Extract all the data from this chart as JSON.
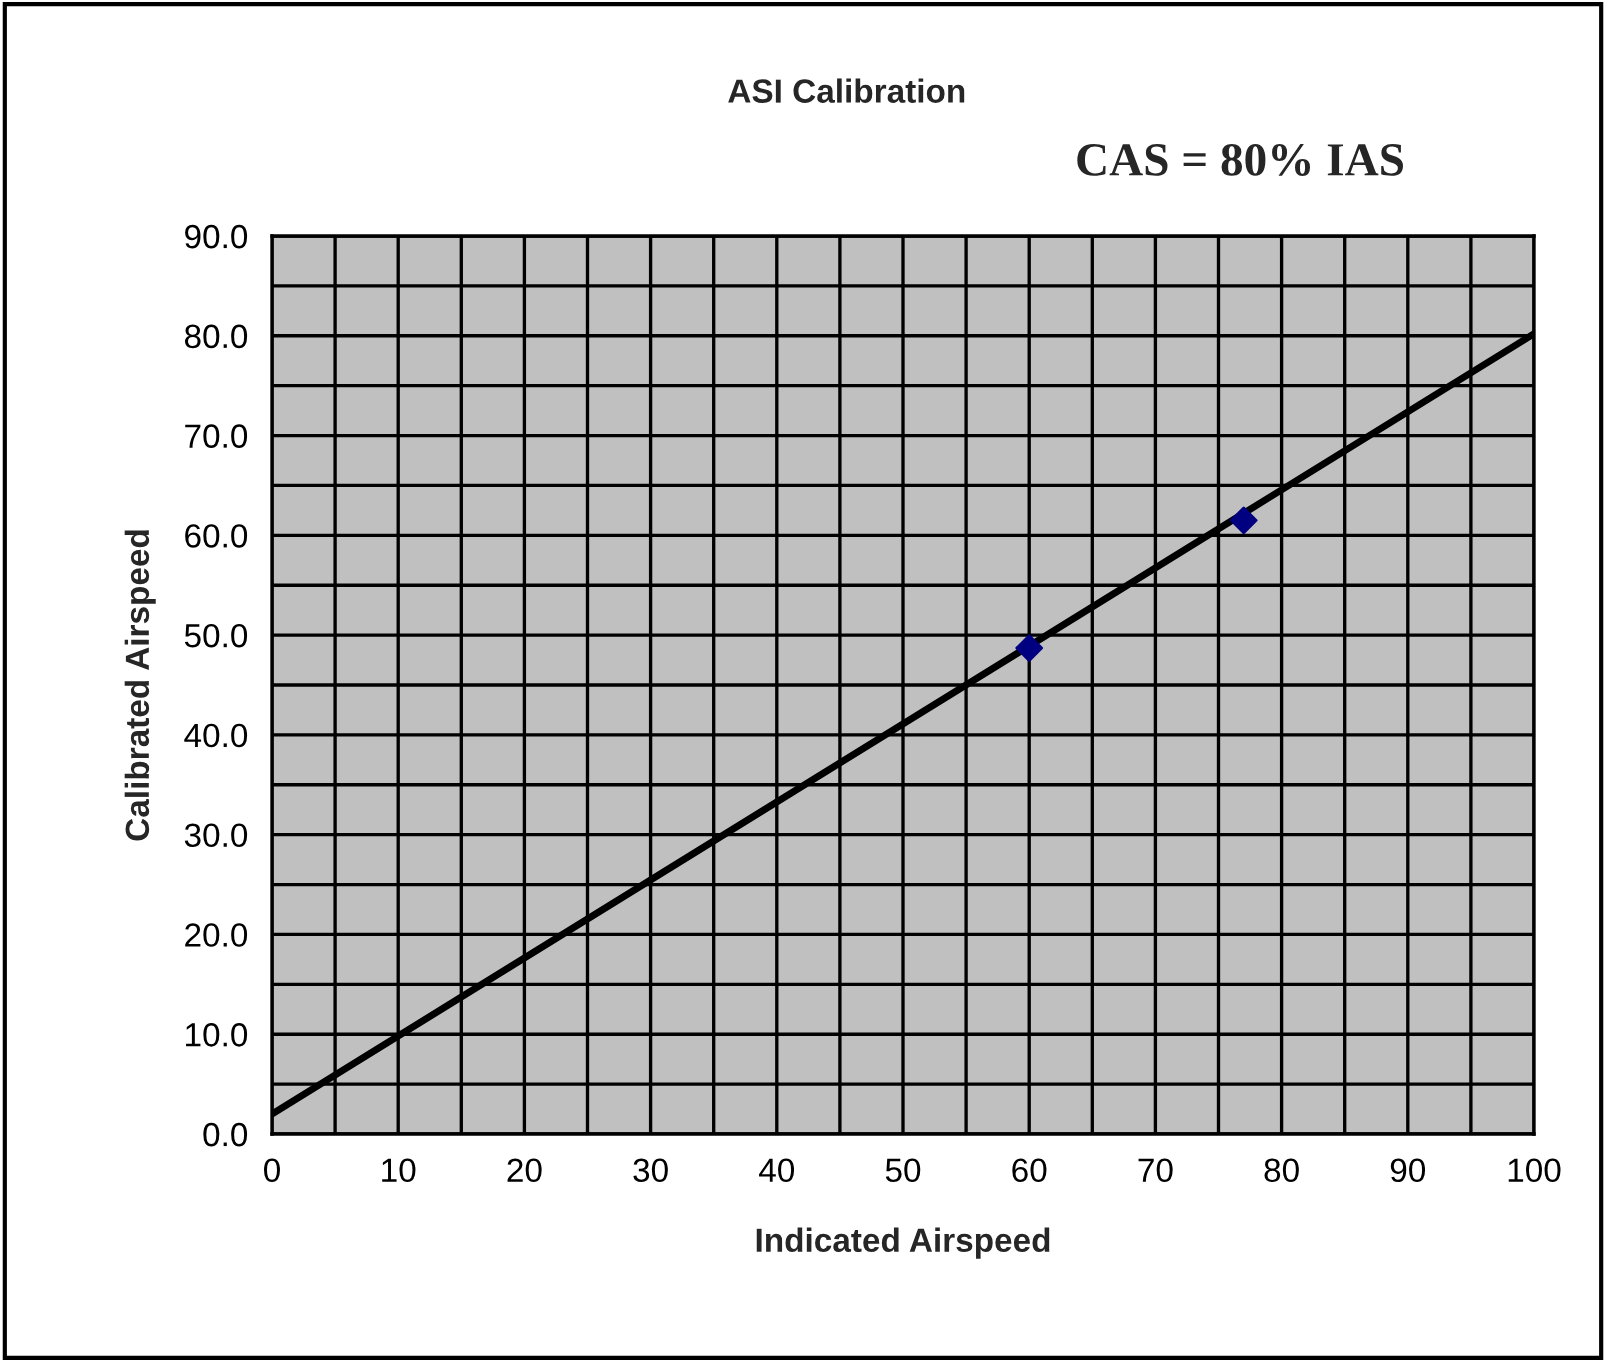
{
  "chart_data": {
    "type": "scatter",
    "title": "ASI Calibration",
    "xlabel": "Indicated Airspeed",
    "ylabel": "Calibrated Airspeed",
    "annotations": [
      "CAS = 80% IAS"
    ],
    "series": [
      {
        "color": "#000080",
        "x": [
          60,
          77
        ],
        "values": [
          48.7,
          61.5
        ],
        "marker": "diamond"
      },
      {
        "type": "line",
        "color": "#000000",
        "x": [
          0,
          100
        ],
        "values": [
          2.0,
          80.2
        ],
        "marker": "none",
        "line_style": "solid"
      }
    ],
    "xlim": [
      0,
      100
    ],
    "ylim": [
      0,
      90
    ],
    "xticks": [
      0,
      {
        "value": 5,
        "label": null
      },
      10,
      {
        "value": 15,
        "label": null
      },
      20,
      {
        "value": 25,
        "label": null
      },
      30,
      {
        "value": 35,
        "label": null
      },
      40,
      {
        "value": 45,
        "label": null
      },
      50,
      {
        "value": 55,
        "label": null
      },
      60,
      {
        "value": 65,
        "label": null
      },
      70,
      {
        "value": 75,
        "label": null
      },
      80,
      {
        "value": 85,
        "label": null
      },
      90,
      {
        "value": 95,
        "label": null
      },
      100
    ],
    "yticks": [
      {
        "value": 0,
        "label": "0.0"
      },
      {
        "value": 5,
        "label": null
      },
      {
        "value": 10,
        "label": "10.0"
      },
      {
        "value": 15,
        "label": null
      },
      {
        "value": 20,
        "label": "20.0"
      },
      {
        "value": 25,
        "label": null
      },
      {
        "value": 30,
        "label": "30.0"
      },
      {
        "value": 35,
        "label": null
      },
      {
        "value": 40,
        "label": "40.0"
      },
      {
        "value": 45,
        "label": null
      },
      {
        "value": 50,
        "label": "50.0"
      },
      {
        "value": 55,
        "label": null
      },
      {
        "value": 60,
        "label": "60.0"
      },
      {
        "value": 65,
        "label": null
      },
      {
        "value": 70,
        "label": "70.0"
      },
      {
        "value": 75,
        "label": null
      },
      {
        "value": 80,
        "label": "80.0"
      },
      {
        "value": 85,
        "label": null
      },
      {
        "value": 90,
        "label": "90.0"
      }
    ],
    "grid": true,
    "legend": false
  }
}
